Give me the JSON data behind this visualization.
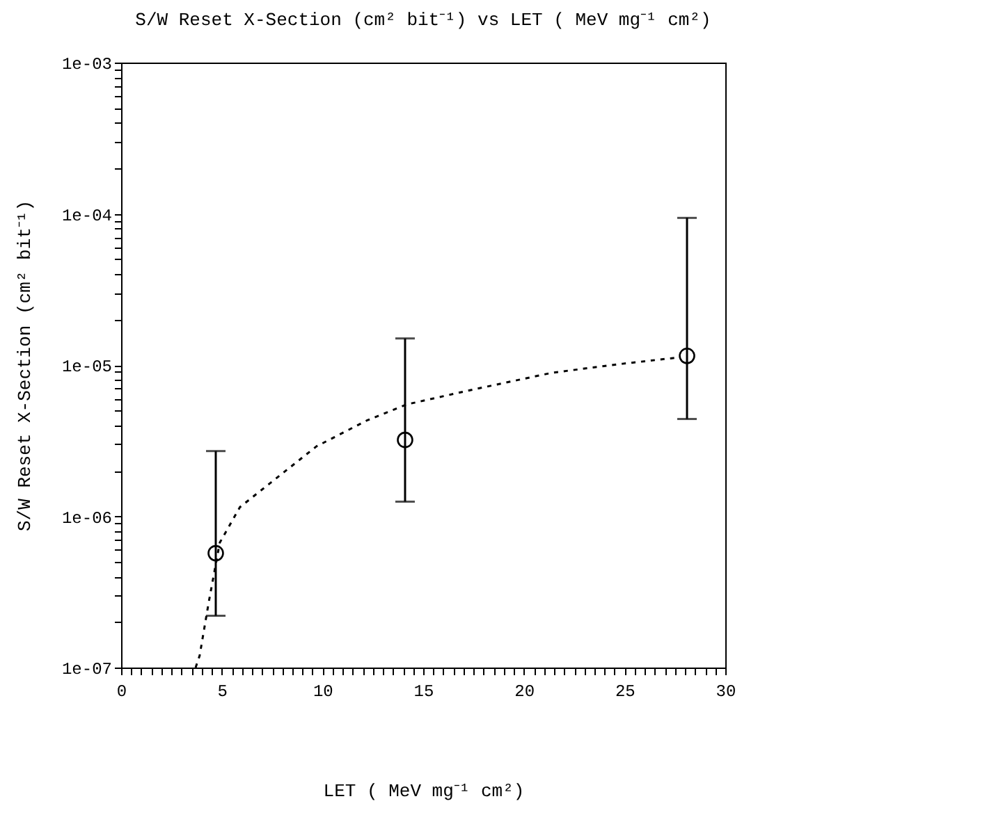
{
  "chart_data": {
    "type": "scatter",
    "title": "S/W Reset  X-Section (cm² bit⁻¹) vs LET ( MeV mg⁻¹ cm²)",
    "xlabel": "LET ( MeV mg⁻¹ cm²)",
    "ylabel": "S/W Reset X-Section (cm² bit⁻¹)",
    "log": "y",
    "grid": false,
    "legend": false,
    "xlim": [
      0,
      30
    ],
    "ylim": [
      1e-07,
      0.001
    ],
    "xticks": [
      0,
      {
        "value": 0.5,
        "label": null
      },
      {
        "value": 1,
        "label": null
      },
      {
        "value": 1.5,
        "label": null
      },
      {
        "value": 2,
        "label": null
      },
      {
        "value": 2.5,
        "label": null
      },
      {
        "value": 3,
        "label": null
      },
      {
        "value": 3.5,
        "label": null
      },
      {
        "value": 4,
        "label": null
      },
      {
        "value": 4.5,
        "label": null
      },
      5,
      {
        "value": 5.5,
        "label": null
      },
      {
        "value": 6,
        "label": null
      },
      {
        "value": 6.5,
        "label": null
      },
      {
        "value": 7,
        "label": null
      },
      {
        "value": 7.5,
        "label": null
      },
      {
        "value": 8,
        "label": null
      },
      {
        "value": 8.5,
        "label": null
      },
      {
        "value": 9,
        "label": null
      },
      {
        "value": 9.5,
        "label": null
      },
      10,
      {
        "value": 10.5,
        "label": null
      },
      {
        "value": 11,
        "label": null
      },
      {
        "value": 11.5,
        "label": null
      },
      {
        "value": 12,
        "label": null
      },
      {
        "value": 12.5,
        "label": null
      },
      {
        "value": 13,
        "label": null
      },
      {
        "value": 13.5,
        "label": null
      },
      {
        "value": 14,
        "label": null
      },
      {
        "value": 14.5,
        "label": null
      },
      15,
      {
        "value": 15.5,
        "label": null
      },
      {
        "value": 16,
        "label": null
      },
      {
        "value": 16.5,
        "label": null
      },
      {
        "value": 17,
        "label": null
      },
      {
        "value": 17.5,
        "label": null
      },
      {
        "value": 18,
        "label": null
      },
      {
        "value": 18.5,
        "label": null
      },
      {
        "value": 19,
        "label": null
      },
      {
        "value": 19.5,
        "label": null
      },
      20,
      {
        "value": 20.5,
        "label": null
      },
      {
        "value": 21,
        "label": null
      },
      {
        "value": 21.5,
        "label": null
      },
      {
        "value": 22,
        "label": null
      },
      {
        "value": 22.5,
        "label": null
      },
      {
        "value": 23,
        "label": null
      },
      {
        "value": 23.5,
        "label": null
      },
      {
        "value": 24,
        "label": null
      },
      {
        "value": 24.5,
        "label": null
      },
      25,
      {
        "value": 25.5,
        "label": null
      },
      {
        "value": 26,
        "label": null
      },
      {
        "value": 26.5,
        "label": null
      },
      {
        "value": 27,
        "label": null
      },
      {
        "value": 27.5,
        "label": null
      },
      {
        "value": 28,
        "label": null
      },
      {
        "value": 28.5,
        "label": null
      },
      {
        "value": 29,
        "label": null
      },
      {
        "value": 29.5,
        "label": null
      },
      30
    ],
    "yticks": [
      {
        "value": 1e-07,
        "label": "1e-07"
      },
      {
        "value": 2e-07,
        "label": null
      },
      {
        "value": 3e-07,
        "label": null
      },
      {
        "value": 4e-07,
        "label": null
      },
      {
        "value": 5e-07,
        "label": null
      },
      {
        "value": 6e-07,
        "label": null
      },
      {
        "value": 7e-07,
        "label": null
      },
      {
        "value": 8e-07,
        "label": null
      },
      {
        "value": 9e-07,
        "label": null
      },
      {
        "value": 1e-06,
        "label": "1e-06"
      },
      {
        "value": 2e-06,
        "label": null
      },
      {
        "value": 3e-06,
        "label": null
      },
      {
        "value": 4e-06,
        "label": null
      },
      {
        "value": 5e-06,
        "label": null
      },
      {
        "value": 6e-06,
        "label": null
      },
      {
        "value": 7e-06,
        "label": null
      },
      {
        "value": 8e-06,
        "label": null
      },
      {
        "value": 9e-06,
        "label": null
      },
      {
        "value": 1e-05,
        "label": "1e-05"
      },
      {
        "value": 2e-05,
        "label": null
      },
      {
        "value": 3e-05,
        "label": null
      },
      {
        "value": 4e-05,
        "label": null
      },
      {
        "value": 5e-05,
        "label": null
      },
      {
        "value": 6e-05,
        "label": null
      },
      {
        "value": 7e-05,
        "label": null
      },
      {
        "value": 8e-05,
        "label": null
      },
      {
        "value": 9e-05,
        "label": null
      },
      {
        "value": 0.0001,
        "label": "1e-04"
      },
      {
        "value": 0.0002,
        "label": null
      },
      {
        "value": 0.0003,
        "label": null
      },
      {
        "value": 0.0004,
        "label": null
      },
      {
        "value": 0.0005,
        "label": null
      },
      {
        "value": 0.0006,
        "label": null
      },
      {
        "value": 0.0007,
        "label": null
      },
      {
        "value": 0.0008,
        "label": null
      },
      {
        "value": 0.0009,
        "label": null
      },
      {
        "value": 0.001,
        "label": "1e-03"
      }
    ],
    "series": [
      {
        "color": "#000000",
        "marker": "circle",
        "x": [
          4.7,
          14.1,
          28.1
        ],
        "values": [
          5.7e-07,
          3.2e-06,
          1.15e-05
        ],
        "errors": [
          [
            2.2e-07,
            2.7e-06
          ],
          [
            1.25e-06,
            1.5e-05
          ],
          [
            4.4e-06,
            9.4e-05
          ]
        ]
      },
      {
        "type": "line",
        "color": "#000000",
        "marker": "none",
        "line_style": "dotted",
        "x": [
          3.7,
          3.9,
          4.35,
          4.9,
          5.9,
          7.6,
          9.7,
          12.2,
          14.2,
          17.5,
          21.4,
          24.9,
          27.6
        ],
        "values": [
          1e-07,
          1.2e-07,
          2.7e-07,
          6.7e-07,
          1.15e-06,
          1.74e-06,
          2.9e-06,
          4.3e-06,
          5.5e-06,
          6.9e-06,
          8.9e-06,
          1.02e-05,
          1.12e-05
        ]
      }
    ]
  }
}
